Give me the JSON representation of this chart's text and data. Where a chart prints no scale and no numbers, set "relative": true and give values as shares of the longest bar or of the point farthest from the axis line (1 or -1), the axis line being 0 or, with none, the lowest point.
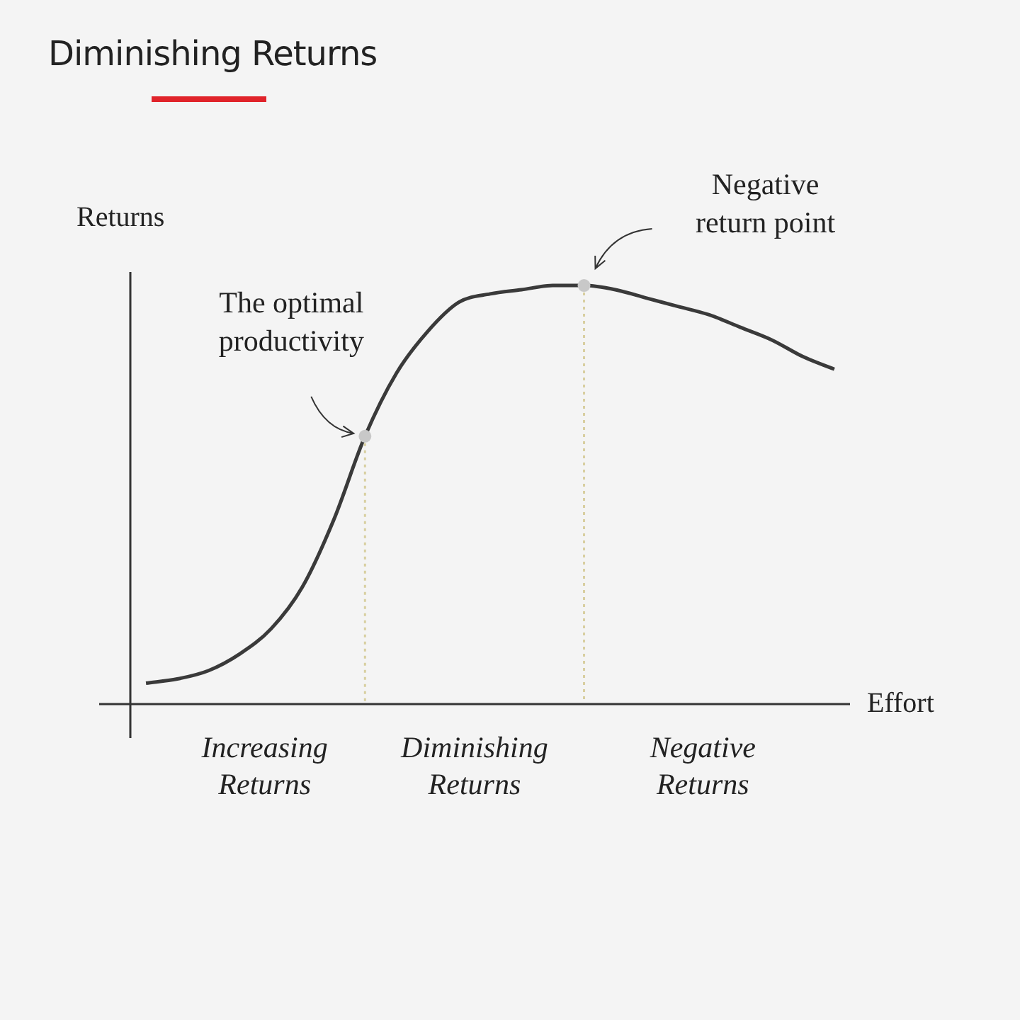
{
  "chart_data": {
    "type": "line",
    "title": "Diminishing Returns",
    "xlabel": "Effort",
    "ylabel": "Returns",
    "relative": true,
    "categories": [
      null,
      null,
      null,
      null,
      null,
      null,
      null,
      null,
      null,
      null,
      null,
      null,
      null,
      null,
      null,
      null,
      null,
      null,
      null,
      null,
      null,
      null,
      null
    ],
    "series": [
      {
        "color": "#3a3a3a",
        "values": [
          0.05,
          0.06,
          0.08,
          0.12,
          0.18,
          0.28,
          0.44,
          0.64,
          0.79,
          0.89,
          0.96,
          0.98,
          0.99,
          1,
          1,
          0.99,
          0.97,
          0.95,
          0.93,
          0.9,
          0.87,
          0.83,
          0.8
        ]
      }
    ],
    "annotations": [
      "The optimal productivity",
      "Negative return point",
      "Increasing Returns",
      "Diminishing Returns",
      "Negative Returns"
    ],
    "marker": "none",
    "line_style": "solid"
  }
}
